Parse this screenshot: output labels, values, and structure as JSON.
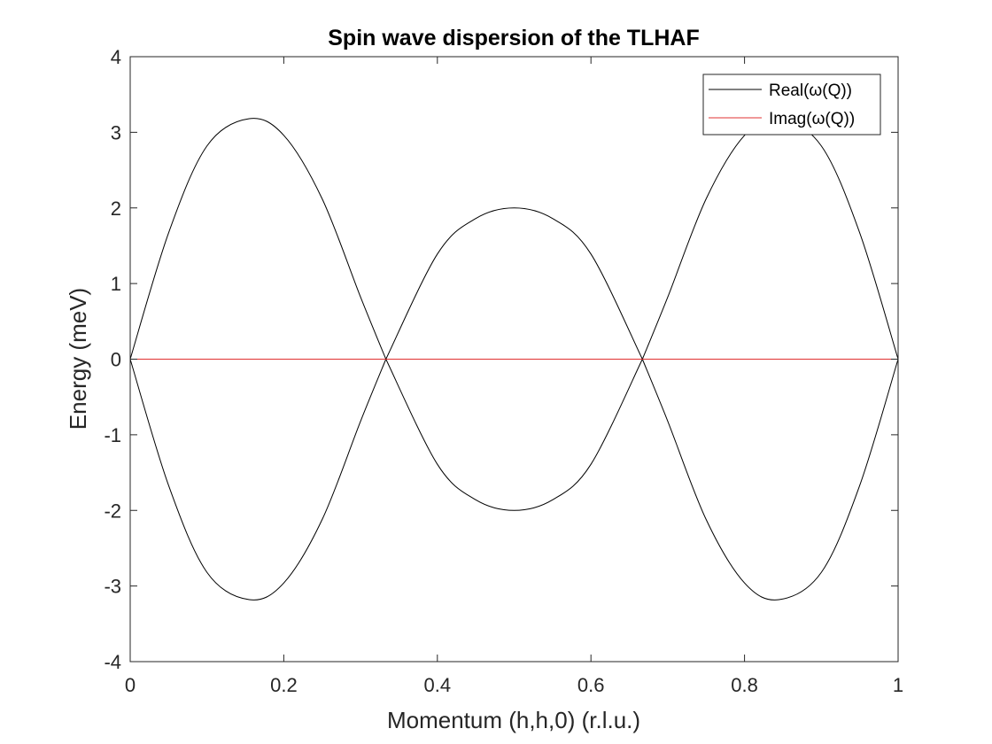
{
  "chart_data": {
    "type": "line",
    "title": "Spin wave dispersion of the TLHAF",
    "xlabel": "Momentum (h,h,0) (r.l.u.)",
    "ylabel": "Energy (meV)",
    "xlim": [
      0,
      1
    ],
    "ylim": [
      -4,
      4
    ],
    "xticks": [
      0,
      0.2,
      0.4,
      0.6,
      0.8,
      1
    ],
    "xtick_labels": [
      "0",
      "0.2",
      "0.4",
      "0.6",
      "0.8",
      "1"
    ],
    "yticks": [
      -4,
      -3,
      -2,
      -1,
      0,
      1,
      2,
      3,
      4
    ],
    "ytick_labels": [
      "-4",
      "-3",
      "-2",
      "-1",
      "0",
      "1",
      "2",
      "3",
      "4"
    ],
    "grid": false,
    "legend_position": "top-right",
    "legend": [
      "Real(ω(Q))",
      "Imag(ω(Q))"
    ],
    "series": [
      {
        "name": "Real(ω(Q))",
        "color": "#000000",
        "x": [
          0,
          0.05,
          0.1,
          0.155,
          0.2,
          0.25,
          0.3,
          0.333,
          0.4,
          0.45,
          0.5,
          0.55,
          0.6,
          0.667,
          0.7,
          0.75,
          0.8,
          0.845,
          0.9,
          0.95,
          1
        ],
        "y": [
          0,
          1.67,
          2.82,
          3.18,
          2.96,
          2.12,
          0.82,
          0,
          1.39,
          1.86,
          2.0,
          1.86,
          1.39,
          0,
          0.82,
          2.12,
          2.96,
          3.18,
          2.82,
          1.67,
          0
        ]
      },
      {
        "name": "",
        "color": "#000000",
        "x": [
          0,
          0.05,
          0.1,
          0.155,
          0.2,
          0.25,
          0.3,
          0.333,
          0.4,
          0.45,
          0.5,
          0.55,
          0.6,
          0.667,
          0.7,
          0.75,
          0.8,
          0.845,
          0.9,
          0.95,
          1
        ],
        "y": [
          0,
          -1.67,
          -2.82,
          -3.18,
          -2.96,
          -2.12,
          -0.82,
          0,
          -1.39,
          -1.86,
          -2.0,
          -1.86,
          -1.39,
          0,
          -0.82,
          -2.12,
          -2.96,
          -3.18,
          -2.82,
          -1.67,
          0
        ]
      },
      {
        "name": "Imag(ω(Q))",
        "color": "#e03030",
        "x": [
          0,
          1
        ],
        "y": [
          0,
          0
        ]
      }
    ]
  }
}
